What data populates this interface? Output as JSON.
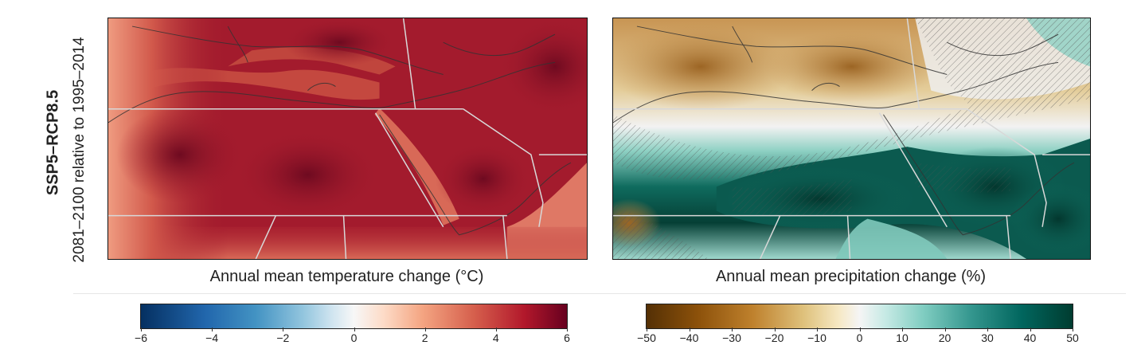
{
  "row_title": "SSP5–RCP8.5",
  "row_subtitle": "2081–2100 relative to 1995–2014",
  "panels": [
    {
      "id": "temperature",
      "label": "Annual mean temperature change (°C)",
      "colorbar": {
        "min": -6,
        "max": 6,
        "ticks": [
          "−6",
          "−4",
          "−2",
          "0",
          "2",
          "4",
          "6"
        ],
        "colormap": "blue-white-red"
      },
      "colors": {
        "high": "#7a0d23",
        "mid": "#a31b2d",
        "low": "#dc7060",
        "edge": "#ef9b80"
      }
    },
    {
      "id": "precipitation",
      "label": "Annual mean precipitation change (%)",
      "colorbar": {
        "min": -50,
        "max": 50,
        "ticks": [
          "−50",
          "−40",
          "−30",
          "−20",
          "−10",
          "0",
          "10",
          "20",
          "30",
          "40",
          "50"
        ],
        "colormap": "brown-white-teal"
      },
      "colors": {
        "dry": "#b57a35",
        "drymid": "#dcc08a",
        "neutral": "#f2f2f2",
        "wet": "#6cc3b5",
        "wetter": "#0f6b5e",
        "wettest": "#053f35"
      }
    }
  ]
}
